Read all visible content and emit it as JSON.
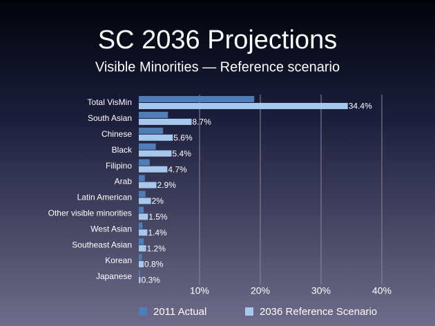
{
  "chart_data": {
    "type": "bar",
    "title": "SC 2036 Projections",
    "subtitle": "Visible Minorities — Reference scenario",
    "categories": [
      "Total VisMin",
      "South Asian",
      "Chinese",
      "Black",
      "Filipino",
      "Arab",
      "Latin American",
      "Other visible minorities",
      "West Asian",
      "Southeast Asian",
      "Korean",
      "Japanese"
    ],
    "series": [
      {
        "name": "2011 Actual",
        "color": "#4f7db8",
        "values": [
          19.0,
          4.8,
          4.0,
          2.8,
          1.8,
          1.0,
          1.1,
          0.8,
          0.6,
          0.8,
          0.5,
          0.2
        ]
      },
      {
        "name": "2036 Reference Scenario",
        "color": "#a6c8ec",
        "values": [
          34.4,
          8.7,
          5.6,
          5.4,
          4.7,
          2.9,
          2,
          1.5,
          1.4,
          1.2,
          0.8,
          0.3
        ],
        "value_labels": [
          "34.4%",
          "8.7%",
          "5.6%",
          "5.4%",
          "4.7%",
          "2.9%",
          "2%",
          "1.5%",
          "1.4%",
          "1.2%",
          "0.8%",
          "0.3%"
        ]
      }
    ],
    "xlim": [
      0,
      40
    ],
    "xticks": [
      {
        "value": 10,
        "label": "10%"
      },
      {
        "value": 20,
        "label": "20%"
      },
      {
        "value": 30,
        "label": "30%"
      },
      {
        "value": 40,
        "label": "40%"
      }
    ],
    "grid": true
  }
}
